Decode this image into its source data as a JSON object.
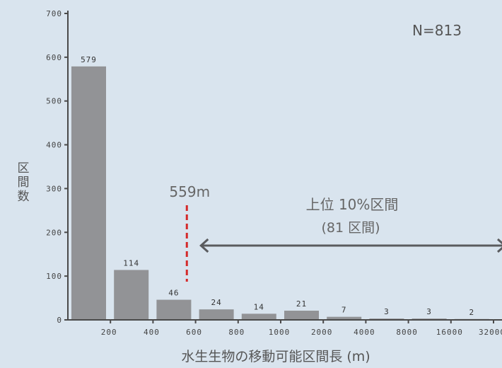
{
  "chart_data": {
    "type": "bar",
    "n_label": "N=813",
    "ylabel": "区間数",
    "xlabel": "水生生物の移動可能区間長 (m)",
    "ylim": [
      0,
      700
    ],
    "yticks": [
      0,
      100,
      200,
      300,
      400,
      500,
      600,
      700
    ],
    "x_boundaries": [
      "200",
      "400",
      "600",
      "800",
      "1000",
      "2000",
      "4000",
      "8000",
      "16000",
      "32000"
    ],
    "values": [
      579,
      114,
      46,
      24,
      14,
      21,
      7,
      3,
      3,
      2
    ],
    "threshold_label": "559m",
    "annotation_line1": "上位 10%区間",
    "annotation_line2": "(81 区間)",
    "colors": {
      "bar": "#929396",
      "threshold": "#d42a2a",
      "arrow": "#5a5b5e",
      "axis": "#4a4a4a"
    }
  }
}
